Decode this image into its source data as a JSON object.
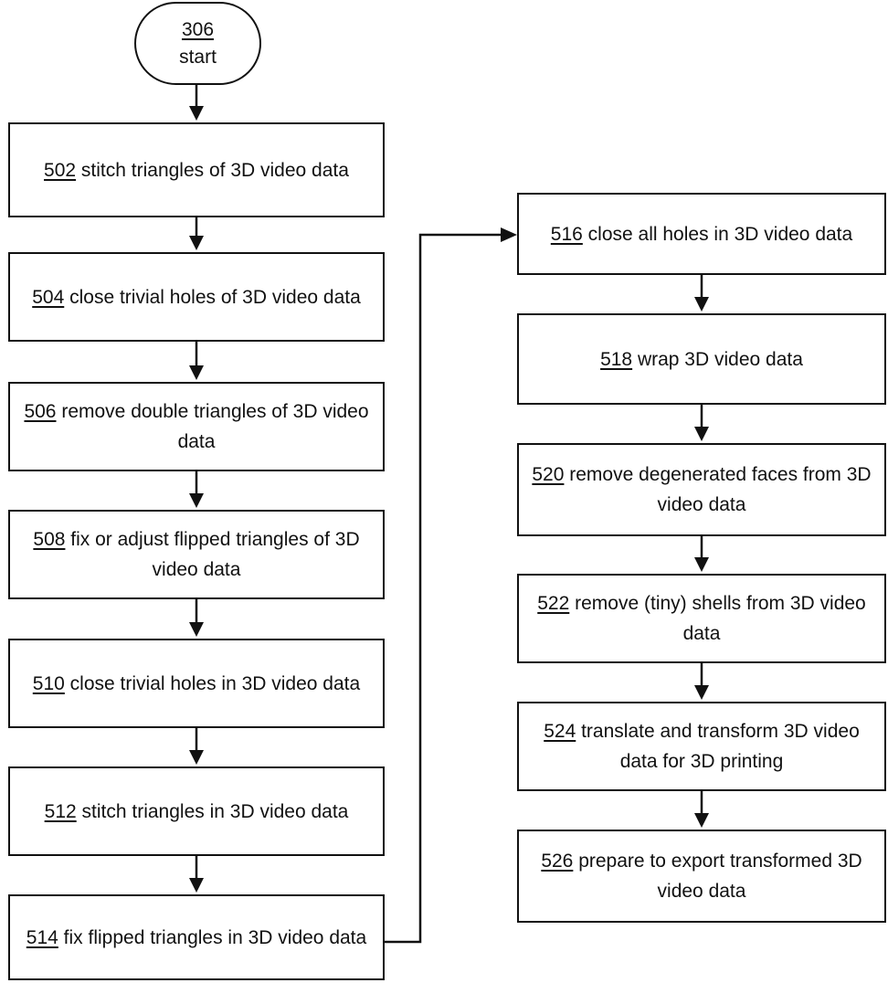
{
  "start": {
    "ref": "306",
    "label": "start"
  },
  "left_column": [
    {
      "ref": "502",
      "text": " stitch triangles of 3D video data"
    },
    {
      "ref": "504",
      "text": " close trivial holes of 3D video data"
    },
    {
      "ref": "506",
      "text": "  remove double triangles of 3D video data"
    },
    {
      "ref": "508",
      "text": "  fix or adjust flipped triangles of 3D video data"
    },
    {
      "ref": "510",
      "text": "  close trivial holes in 3D video data"
    },
    {
      "ref": "512",
      "text": "  stitch triangles in 3D video data"
    },
    {
      "ref": "514",
      "text": "  fix flipped triangles in 3D video data"
    }
  ],
  "right_column": [
    {
      "ref": "516",
      "text": " close all holes in 3D video data"
    },
    {
      "ref": "518",
      "text": " wrap 3D video data"
    },
    {
      "ref": "520",
      "text": " remove degenerated faces from 3D video data"
    },
    {
      "ref": "522",
      "text": "  remove (tiny) shells from 3D video data"
    },
    {
      "ref": "524",
      "text": "  translate and transform 3D video data for 3D printing"
    },
    {
      "ref": "526",
      "text": "  prepare to export transformed 3D video data"
    }
  ]
}
